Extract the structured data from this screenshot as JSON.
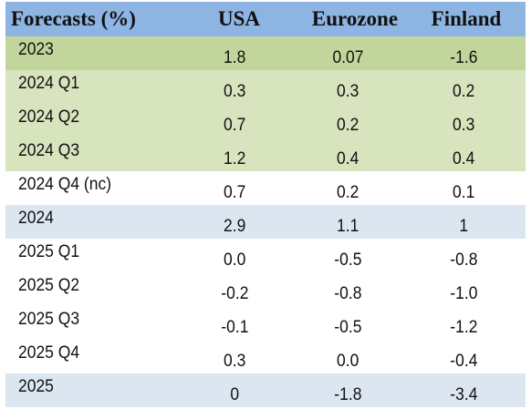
{
  "table": {
    "headers": [
      "Forecasts (%)",
      "USA",
      "Eurozone",
      "Finland"
    ],
    "rows": [
      {
        "label": "2023",
        "usa": "1.8",
        "eurozone": "0.07",
        "finland": "-1.6",
        "style": "annual-green"
      },
      {
        "label": "2024 Q1",
        "usa": "0.3",
        "eurozone": "0.3",
        "finland": "0.2",
        "style": "quarter-green"
      },
      {
        "label": "2024 Q2",
        "usa": "0.7",
        "eurozone": "0.2",
        "finland": "0.3",
        "style": "quarter-green"
      },
      {
        "label": "2024 Q3",
        "usa": "1.2",
        "eurozone": "0.4",
        "finland": "0.4",
        "style": "quarter-green"
      },
      {
        "label": "2024 Q4 (nc)",
        "usa": "0.7",
        "eurozone": "0.2",
        "finland": "0.1",
        "style": "plain"
      },
      {
        "label": "2024",
        "usa": "2.9",
        "eurozone": "1.1",
        "finland": "1",
        "style": "annual-blue"
      },
      {
        "label": "2025 Q1",
        "usa": "0.0",
        "eurozone": "-0.5",
        "finland": "-0.8",
        "style": "plain"
      },
      {
        "label": "2025 Q2",
        "usa": "-0.2",
        "eurozone": "-0.8",
        "finland": "-1.0",
        "style": "plain"
      },
      {
        "label": "2025 Q3",
        "usa": "-0.1",
        "eurozone": "-0.5",
        "finland": "-1.2",
        "style": "plain"
      },
      {
        "label": "2025 Q4",
        "usa": "0.3",
        "eurozone": "0.0",
        "finland": "-0.4",
        "style": "plain"
      },
      {
        "label": "2025",
        "usa": "0",
        "eurozone": "-1.8",
        "finland": "-3.4",
        "style": "annual-blue"
      }
    ]
  },
  "colors": {
    "header_bg": "#8eb4e3",
    "annual_green": "#c2d69b",
    "quarter_green": "#d7e4bd",
    "annual_blue": "#dce6f1"
  }
}
